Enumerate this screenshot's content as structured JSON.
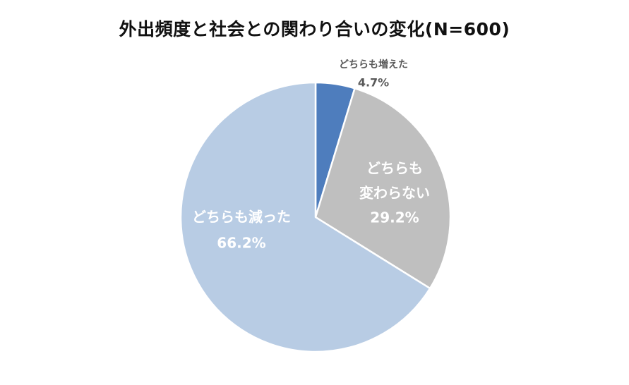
{
  "chart_data": {
    "type": "pie",
    "title": "外出頻度と社会との関わり合いの変化(N=600)",
    "start_angle_deg": 0,
    "direction": "clockwise",
    "slices": [
      {
        "label_lines": [
          "どちらも増えた"
        ],
        "value": 4.7,
        "value_label": "4.7%",
        "color": "#4e7dbd",
        "label_color": "#595959",
        "label_position": "outside"
      },
      {
        "label_lines": [
          "どちらも",
          "変わらない"
        ],
        "value": 29.2,
        "value_label": "29.2%",
        "color": "#bfbfbf",
        "label_color": "#ffffff",
        "label_position": "inside"
      },
      {
        "label_lines": [
          "どちらも減った"
        ],
        "value": 66.2,
        "value_label": "66.2%",
        "color": "#b8cce4",
        "label_color": "#ffffff",
        "label_position": "inside"
      }
    ]
  }
}
